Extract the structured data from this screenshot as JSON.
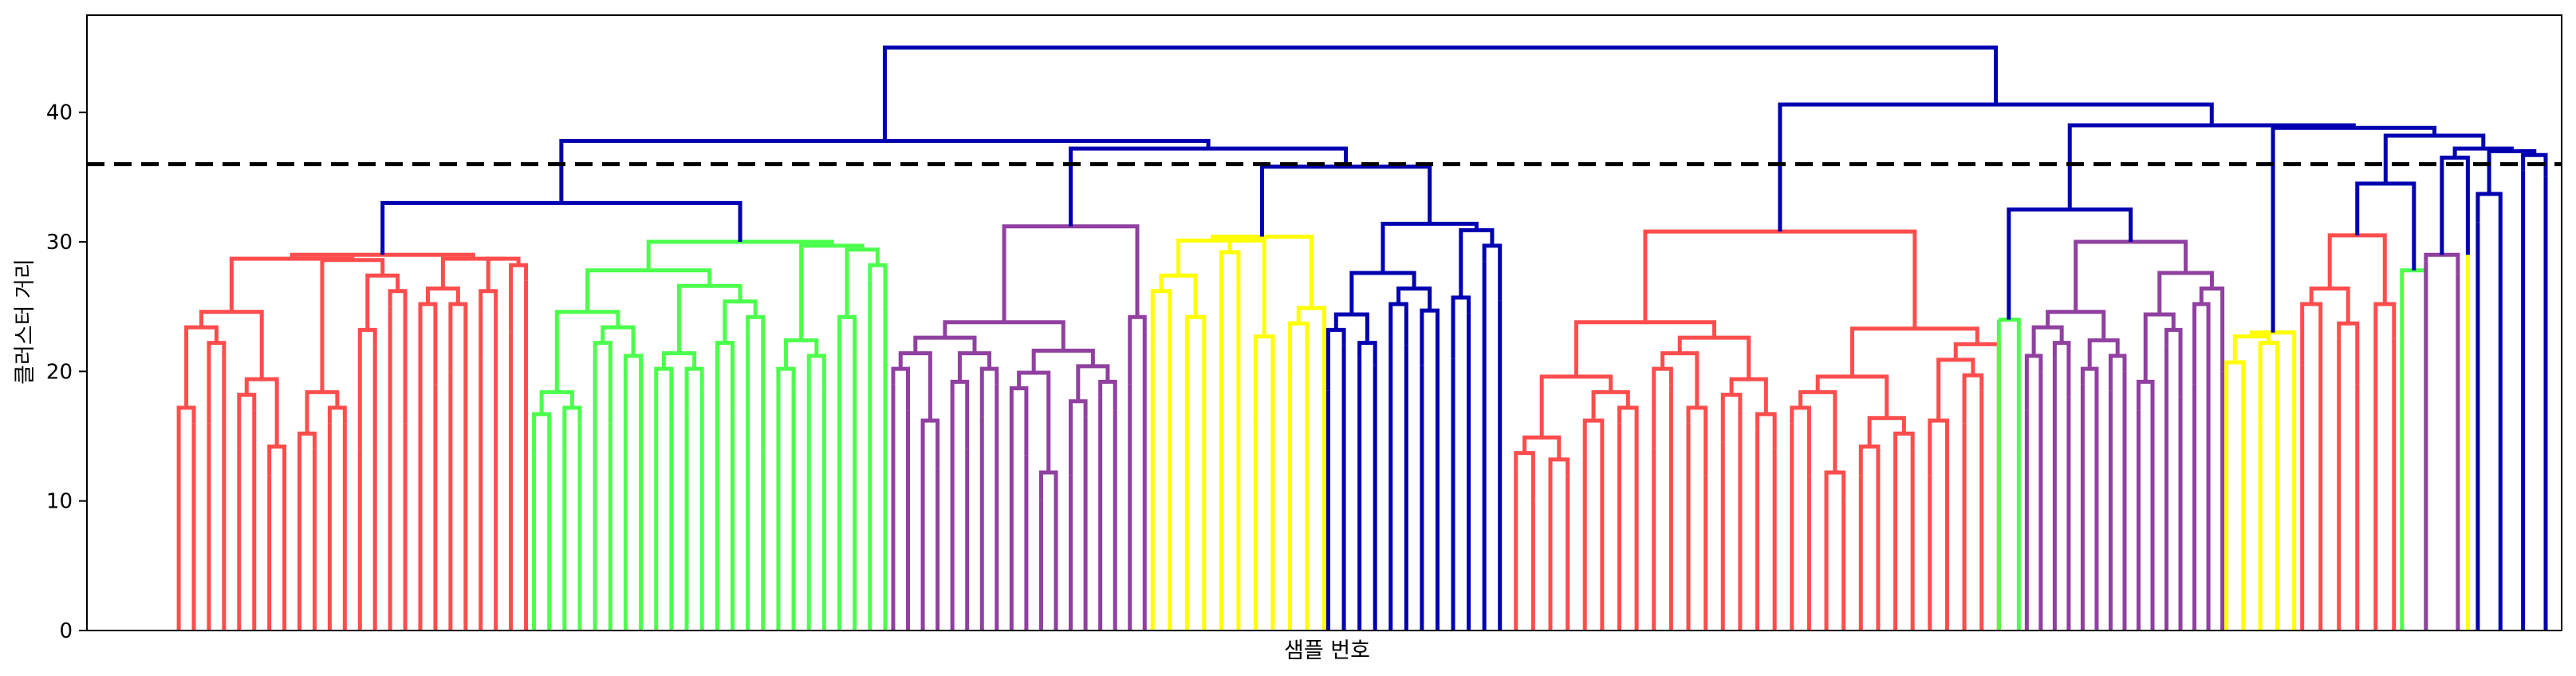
{
  "chart_data": {
    "type": "dendrogram",
    "title": "",
    "xlabel": "샘플 번호",
    "ylabel": "클러스터 거리",
    "ylim": [
      0,
      47.5
    ],
    "yticks": [
      0,
      10,
      20,
      30,
      40
    ],
    "cut_threshold": 36.0,
    "cut_line_color": "#000000",
    "cut_line_style": "dashed",
    "above_threshold_color": "#0000b0",
    "grid": false,
    "clusters": [
      {
        "color": "#ff4d4d",
        "x_range": [
          2.3,
          11.0
        ],
        "root_height": 29.0,
        "leaf_heights": [
          11.0,
          16.0,
          16.0,
          21.0,
          14.0,
          17.0,
          12.0,
          13.0,
          11.0,
          14.0,
          16.0,
          16.0,
          14.0,
          22.0,
          25.0,
          16.0,
          24.0,
          19.0,
          20.0,
          24.0,
          21.0,
          25.0,
          23.0,
          27.0
        ]
      },
      {
        "color": "#4dff4d",
        "x_range": [
          11.2,
          20.0
        ],
        "root_height": 30.0,
        "leaf_heights": [
          13.5,
          15.5,
          14.0,
          16.0,
          21.0,
          16.0,
          20.0,
          15.0,
          19.0,
          16.0,
          17.0,
          19.0,
          21.0,
          17.0,
          23.0,
          14.0,
          13.0,
          19.0,
          20.0,
          19.0,
          23.0,
          21.0,
          27.0,
          25.0
        ]
      },
      {
        "color": "#9040a0",
        "x_range": [
          20.2,
          26.5
        ],
        "root_height": 31.2,
        "leaf_heights": [
          19.0,
          17.0,
          15.0,
          12.5,
          18.0,
          14.0,
          16.5,
          19.0,
          17.5,
          13.5,
          10.0,
          11.0,
          12.0,
          16.5,
          18.0,
          17.0,
          19.0,
          23.0
        ]
      },
      {
        "color": "#ffff00",
        "x_range": [
          26.7,
          31.0
        ],
        "root_height": 30.4,
        "leaf_heights": [
          22.0,
          25.0,
          23.0,
          19.0,
          28.0,
          27.0,
          16.5,
          21.5,
          20.0,
          22.5,
          19.0
        ]
      },
      {
        "color": "#0000b0",
        "x_range": [
          31.1,
          35.4
        ],
        "root_height": 31.4,
        "leaf_heights": [
          18.5,
          22.0,
          21.0,
          20.5,
          24.0,
          22.0,
          20.5,
          23.5,
          21.0,
          24.5,
          28.5,
          25.5
        ]
      },
      {
        "color": "#ff4d4d",
        "x_range": [
          35.8,
          47.9
        ],
        "root_height": 30.8,
        "leaf_heights": [
          12.5,
          10.0,
          8.5,
          12.0,
          11.0,
          15.0,
          16.0,
          13.0,
          14.0,
          19.0,
          16.0,
          12.0,
          14.5,
          17.0,
          15.5,
          14.0,
          16.0,
          12.0,
          11.0,
          10.0,
          12.0,
          13.0,
          11.0,
          14.0,
          12.0,
          15.0,
          16.0,
          18.5,
          20.0
        ]
      },
      {
        "color": "#4dff4d",
        "x_range": [
          47.9,
          48.4
        ],
        "root_height": 24.0,
        "leaf_heights": [
          24.0,
          13.5
        ]
      },
      {
        "color": "#9040a0",
        "x_range": [
          48.6,
          53.5
        ],
        "root_height": 30.0,
        "leaf_heights": [
          17.0,
          20.0,
          21.0,
          18.0,
          19.0,
          17.5,
          18.5,
          20.0,
          17.0,
          18.0,
          22.0,
          18.0,
          19.0,
          24.0,
          20.0
        ]
      },
      {
        "color": "#ffff00",
        "x_range": [
          53.6,
          55.3
        ],
        "root_height": 23.0,
        "leaf_heights": [
          19.5,
          17.0,
          16.0,
          21.0,
          17.0
        ]
      },
      {
        "color": "#ff4d4d",
        "x_range": [
          55.5,
          57.8
        ],
        "root_height": 30.5,
        "leaf_heights": [
          20.5,
          24.0,
          22.5,
          19.0,
          24.0,
          22.5
        ]
      },
      {
        "color": "#4dff4d",
        "x_range": [
          58.0,
          58.6
        ],
        "root_height": 27.8,
        "leaf_heights": [
          22.5,
          24.0
        ]
      },
      {
        "color": "#9040a0",
        "x_range": [
          58.6,
          59.4
        ],
        "root_height": 29.0,
        "leaf_heights": [
          28.5,
          27.5
        ]
      },
      {
        "color": "#ffff00",
        "x_range": [
          59.5,
          59.8
        ],
        "root_height": 29.0,
        "leaf_heights": [
          29.0
        ]
      },
      {
        "color": "#0000b0",
        "x_range": [
          59.9,
          61.6
        ],
        "root_height": 37.0,
        "leaf_heights": [
          31.5,
          32.5,
          35.5,
          35.0
        ]
      }
    ]
  }
}
